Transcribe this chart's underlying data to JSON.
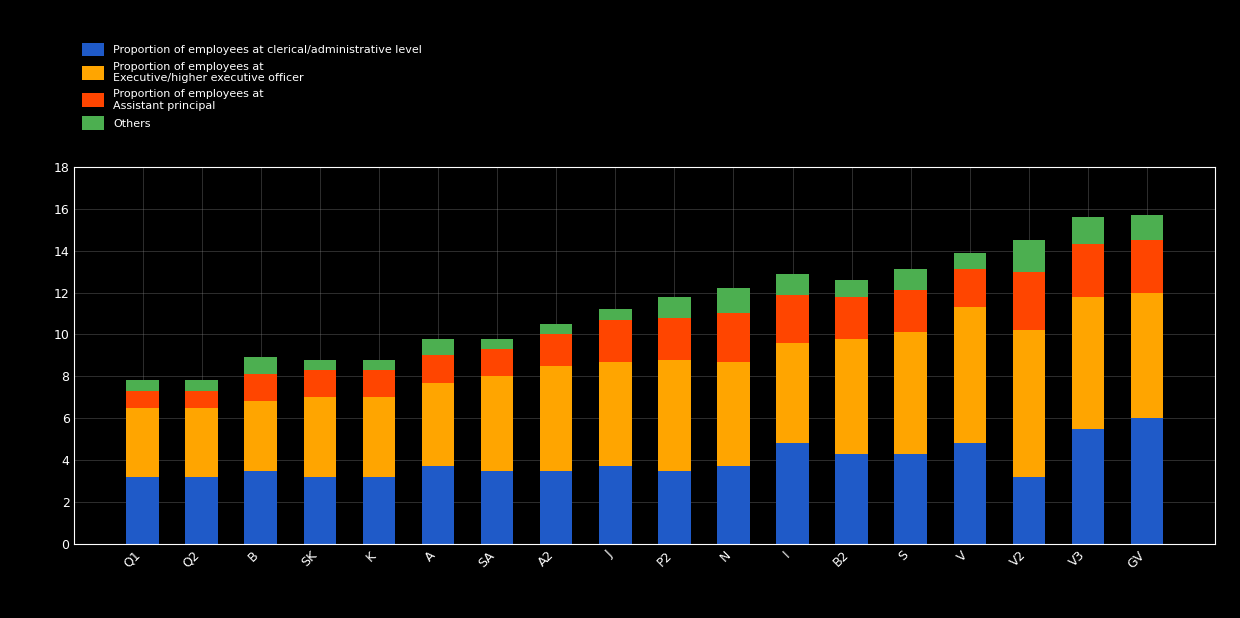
{
  "categories": [
    "Q1",
    "Q2",
    "B",
    "SK",
    "K",
    "A",
    "SA",
    "A2",
    "J",
    "P2",
    "N",
    "I",
    "B2",
    "S",
    "V",
    "V2",
    "V3",
    "GV"
  ],
  "blue": [
    3.2,
    3.2,
    3.5,
    3.2,
    3.2,
    3.7,
    3.5,
    3.5,
    3.7,
    3.5,
    3.7,
    4.8,
    4.3,
    4.3,
    4.8,
    3.2,
    5.5,
    6.0
  ],
  "gold": [
    3.3,
    3.3,
    3.3,
    3.8,
    3.8,
    4.0,
    4.5,
    5.0,
    5.0,
    5.3,
    5.0,
    4.8,
    5.5,
    5.8,
    6.5,
    7.0,
    6.3,
    6.0
  ],
  "orange": [
    0.8,
    0.8,
    1.3,
    1.3,
    1.3,
    1.3,
    1.3,
    1.5,
    2.0,
    2.0,
    2.3,
    2.3,
    2.0,
    2.0,
    1.8,
    2.8,
    2.5,
    2.5
  ],
  "green": [
    0.5,
    0.5,
    0.8,
    0.5,
    0.5,
    0.8,
    0.5,
    0.5,
    0.5,
    1.0,
    1.2,
    1.0,
    0.8,
    1.0,
    0.8,
    1.5,
    1.3,
    1.2
  ],
  "blue_color": "#1F5AC8",
  "gold_color": "#FFA500",
  "orange_color": "#FF4500",
  "green_color": "#4CAF50",
  "legend_blue": "Proportion of employees at clerical/administrative level",
  "legend_gold": "Proportion of employees at\nExecutive/higher executive officer",
  "legend_orange": "Proportion of employees at\nAssistant principal",
  "legend_green": "Others",
  "ylim": [
    0,
    18
  ],
  "yticks": [
    0,
    2,
    4,
    6,
    8,
    10,
    12,
    14,
    16,
    18
  ],
  "bg_color": "#000000",
  "text_color": "#ffffff",
  "grid_color": "#808080"
}
